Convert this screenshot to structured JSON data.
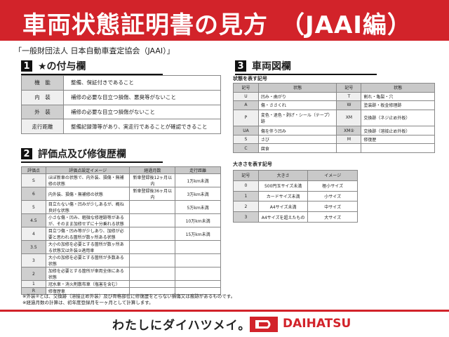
{
  "header": {
    "title": "車両状態証明書の見方　（JAAI編）",
    "organization": "「一般財団法人 日本自動車査定協会（JAAI）」"
  },
  "section1": {
    "number": "1",
    "title": "★の付与欄",
    "rows": [
      {
        "label": "機　能",
        "text": "整備、保証付きであること"
      },
      {
        "label": "内　装",
        "text": "補修の必要な目立つ損傷、悪臭等がないこと"
      },
      {
        "label": "外　装",
        "text": "補修の必要な目立つ損傷がないこと"
      },
      {
        "label": "走行距離",
        "text": "整備記録簿等があり、実走行であることが確認できること"
      }
    ]
  },
  "section2": {
    "number": "2",
    "title": "評価点及び修復歴欄",
    "headers": [
      "評価点",
      "評価点設定イメージ",
      "経過月数",
      "走行距離"
    ],
    "rows": [
      [
        "S",
        "ほぼ新車の状態で、内外装、損傷・無補修の状態",
        "新車登録後12ヶ月以内",
        "1万km未満"
      ],
      [
        "6",
        "内外装、損傷・無補修の状態",
        "新車登録後36ヶ月以内",
        "3万km未満"
      ],
      [
        "5",
        "目立たない傷・凹みが少しあるが、概ね良好な状態",
        "",
        "5万km未満"
      ],
      [
        "4.5",
        "小さな傷・凹み、軽微な修理跡等があるが、そのまま加修せずに十分乗れる状態",
        "",
        "10万km未満"
      ],
      [
        "4",
        "目立つ傷・凹み等が少しあり、加修が必要と思われる箇所が数ヶ所ある状態",
        "",
        "15万km未満"
      ],
      [
        "3.5",
        "大小の加修を必要とする箇所が数ヶ所ある状態又は外装②適用車",
        "",
        ""
      ],
      [
        "3",
        "大小の加修を必要とする箇所が多数ある状態",
        "",
        ""
      ],
      [
        "2",
        "加修を必要とする箇所が車両全体にある状態",
        "",
        ""
      ],
      [
        "1",
        "冠水車・消火剤散布車（塩害を含む）",
        "",
        ""
      ],
      [
        "R",
        "修復歴車",
        "",
        ""
      ]
    ]
  },
  "section3": {
    "number": "3",
    "title": "車両図欄",
    "state_caption": "状態を表す記号",
    "state_headers": [
      "記号",
      "状態",
      "記号",
      "状態"
    ],
    "state_rows": [
      [
        "U",
        "凹み・曲がり",
        "T",
        "割れ・亀裂・穴"
      ],
      [
        "A",
        "傷・ささくれ",
        "W",
        "塗装跡・板金修理跡"
      ],
      [
        "P",
        "変色・退色・剥げ・シール（テープ）跡",
        "XM",
        "交換跡（ネジ止め外板）"
      ],
      [
        "UA",
        "傷を伴う凹み",
        "XM②",
        "交換跡（溶接止め外板）"
      ],
      [
        "S",
        "さび",
        "M",
        "修復歴"
      ],
      [
        "C",
        "腐食",
        "",
        ""
      ]
    ],
    "size_caption": "大きさを表す記号",
    "size_headers": [
      "記号",
      "大きさ",
      "イメージ"
    ],
    "size_rows": [
      [
        "0",
        "500円玉サイズ未満",
        "極小サイズ"
      ],
      [
        "1",
        "カードサイズ未満",
        "小サイズ"
      ],
      [
        "2",
        "A4サイズ未満",
        "中サイズ"
      ],
      [
        "3",
        "A4サイズを超えたもの",
        "大サイズ"
      ]
    ]
  },
  "notes": [
    "※外装②とは、交換跡（溶接止め外装）及び骨格部位に修復歴をとらない損傷又は痕跡があるものです。",
    "※経過月数の計算は、初年度登録月を一ヶ月として計算します。"
  ],
  "footer": {
    "slogan": "わたしにダイハツメイ。",
    "brand": "DAIHATSU",
    "brand_color": "#d2232a"
  }
}
